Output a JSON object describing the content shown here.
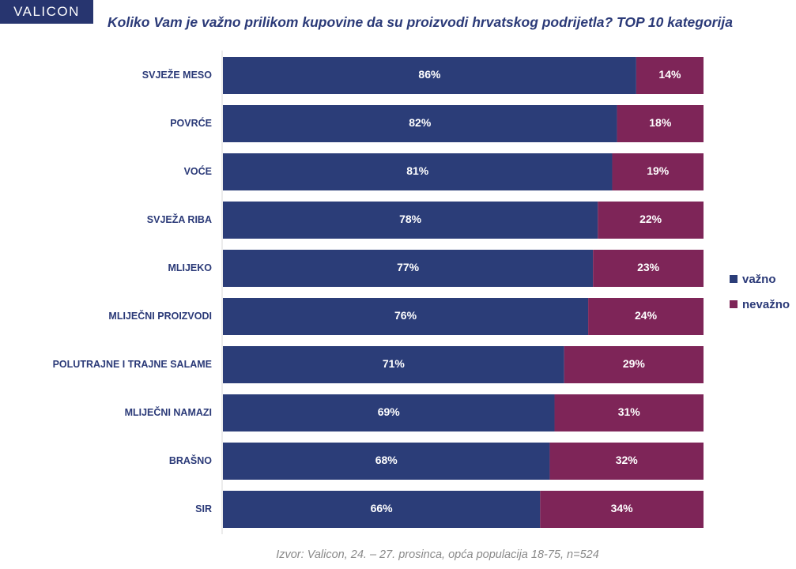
{
  "logo": "VALICON",
  "colors": {
    "important": "#2b3d78",
    "unimportant": "#7e2558",
    "label": "#2b3a78",
    "axis": "#d9d9d9"
  },
  "legend": {
    "important": "važno",
    "unimportant": "nevažno"
  },
  "source": "Izvor: Valicon, 24. – 27. prosinca, opća populacija 18-75, n=524",
  "chart_data": {
    "type": "bar",
    "orientation": "horizontal",
    "stacked": true,
    "title": "Koliko Vam je važno prilikom kupovine da su proizvodi hrvatskog podrijetla? TOP 10 kategorija",
    "categories": [
      "SVJEŽE MESO",
      "POVRĆE",
      "VOĆE",
      "SVJEŽA RIBA",
      "MLIJEKO",
      "MLIJEČNI PROIZVODI",
      "POLUTRAJNE I TRAJNE SALAME",
      "MLIJEČNI NAMAZI",
      "BRAŠNO",
      "SIR"
    ],
    "series": [
      {
        "name": "važno",
        "values": [
          86,
          82,
          81,
          78,
          77,
          76,
          71,
          69,
          68,
          66
        ]
      },
      {
        "name": "nevažno",
        "values": [
          14,
          18,
          19,
          22,
          23,
          24,
          29,
          31,
          32,
          34
        ]
      }
    ],
    "value_suffix": "%",
    "xlim": [
      0,
      100
    ],
    "legend_position": "right",
    "grid": false
  }
}
